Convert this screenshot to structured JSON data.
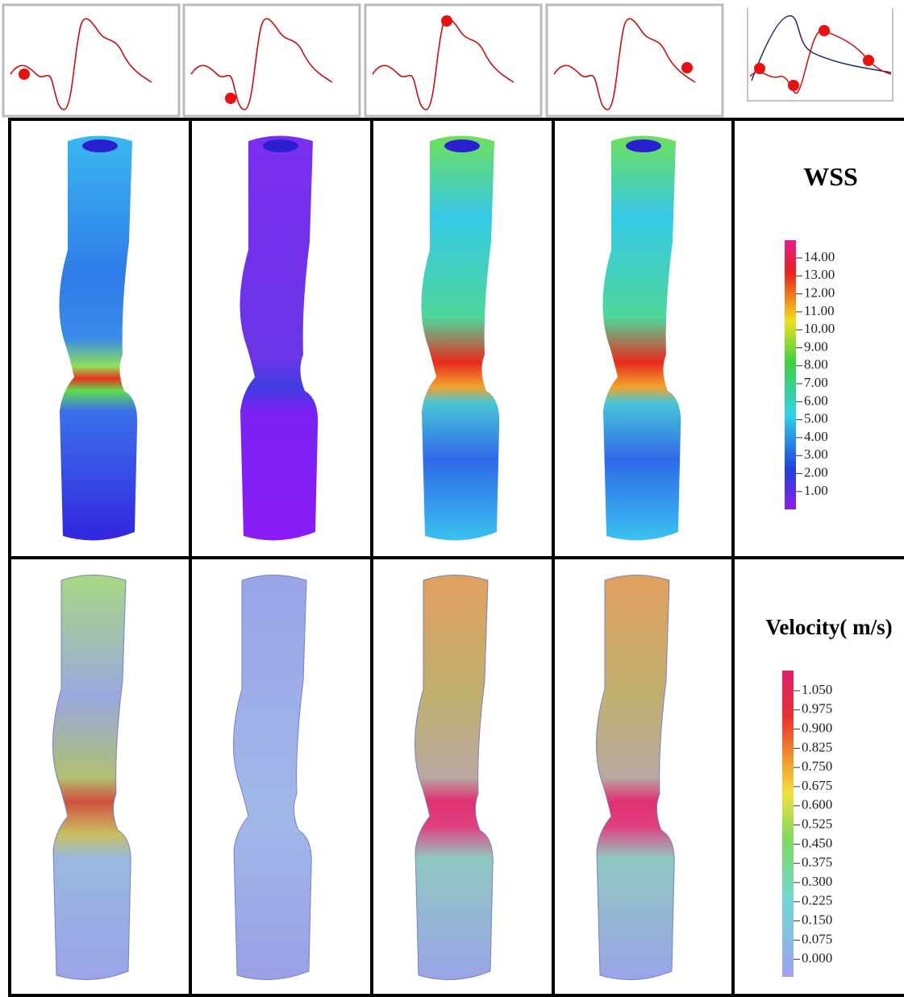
{
  "wss_legend": {
    "title": "WSS",
    "ticks": [
      "14.00",
      "13.00",
      "12.00",
      "11.00",
      "10.00",
      "9.00",
      "8.00",
      "7.00",
      "6.00",
      "5.00",
      "4.00",
      "3.00",
      "2.00",
      "1.00"
    ]
  },
  "velocity_legend": {
    "title": "Velocity( m/s)",
    "ticks": [
      "1.050",
      "0.975",
      "0.900",
      "0.825",
      "0.750",
      "0.675",
      "0.600",
      "0.525",
      "0.450",
      "0.375",
      "0.300",
      "0.225",
      "0.150",
      "0.075",
      "0.000"
    ]
  }
}
